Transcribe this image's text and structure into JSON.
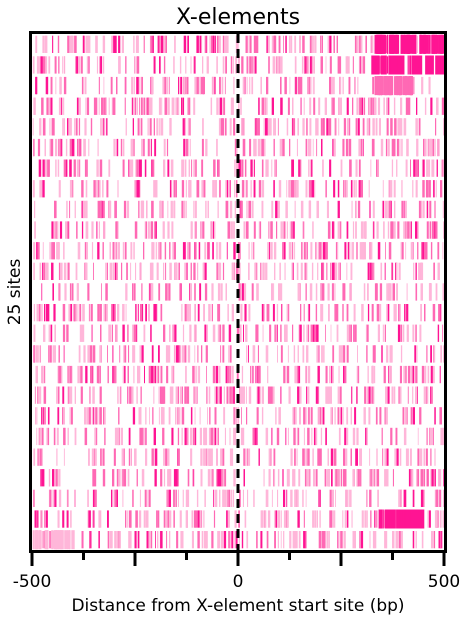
{
  "chart_data": {
    "type": "heatmap",
    "title": "X-elements",
    "xlabel": "Distance from X-element start site (bp)",
    "ylabel": "25 sites",
    "xlim": [
      -500,
      500
    ],
    "x_ticks": [
      -500,
      0,
      500
    ],
    "x_minor_ticks": [
      -375,
      -250,
      -125,
      125,
      250,
      375
    ],
    "reference_line": {
      "x": 0,
      "style": "dashed"
    },
    "rows": 25,
    "hotspots": [
      {
        "row": 0,
        "x_range": [
          330,
          500
        ],
        "intensity": "high"
      },
      {
        "row": 1,
        "x_range": [
          320,
          500
        ],
        "intensity": "high"
      },
      {
        "row": 2,
        "x_range": [
          330,
          420
        ],
        "intensity": "medium"
      },
      {
        "row": 23,
        "x_range": [
          340,
          450
        ],
        "intensity": "high"
      },
      {
        "row": 24,
        "x_range": [
          -500,
          -400
        ],
        "intensity": "low"
      }
    ],
    "colors": {
      "high": "#ff1493",
      "medium": "#ff69b4",
      "low": "#ffb6d9",
      "background": "#ffffff",
      "axis": "#000000"
    },
    "grid": false
  }
}
